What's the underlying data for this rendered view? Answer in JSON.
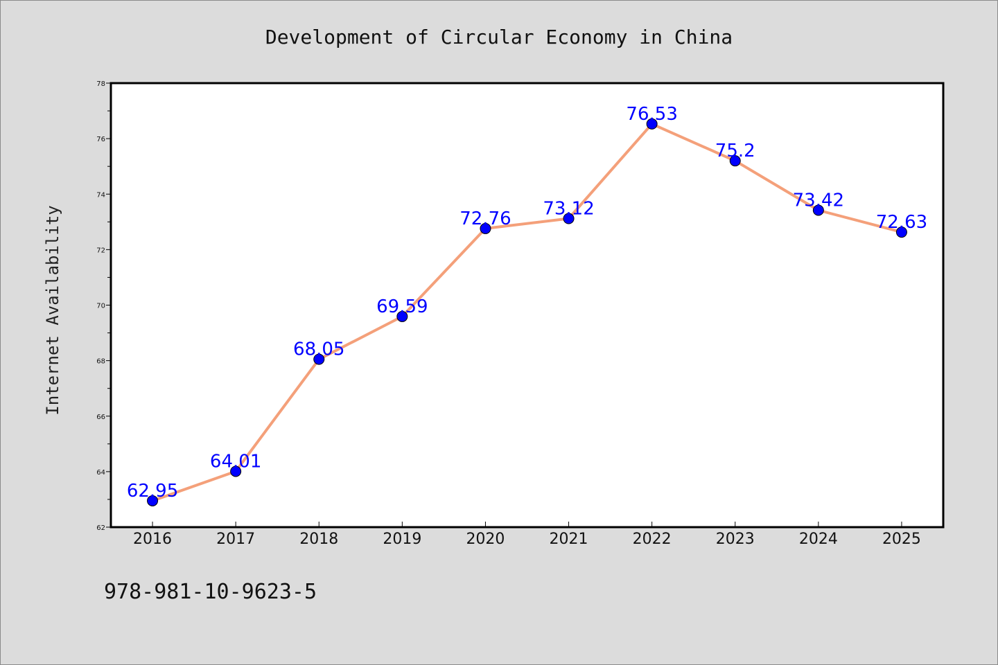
{
  "chart_data": {
    "type": "line",
    "title": "Development of Circular Economy in China",
    "xlabel": "",
    "ylabel": "Internet Availability",
    "categories": [
      "2016",
      "2017",
      "2018",
      "2019",
      "2020",
      "2021",
      "2022",
      "2023",
      "2024",
      "2025"
    ],
    "series": [
      {
        "values": [
          62.95,
          64.01,
          68.05,
          69.59,
          72.76,
          73.12,
          76.53,
          75.2,
          73.42,
          72.63
        ],
        "line_color": "#f4a07a",
        "marker_color": "#0000ff"
      }
    ],
    "data_labels": [
      "62.95",
      "64.01",
      "68.05",
      "69.59",
      "72.76",
      "73.12",
      "76.53",
      "75.2",
      "73.42",
      "72.63"
    ],
    "ylim": [
      62,
      78
    ],
    "yticks": [
      "62",
      "64",
      "66",
      "68",
      "70",
      "72",
      "74",
      "76",
      "78"
    ],
    "grid": false,
    "legend": "none"
  },
  "footer": {
    "isbn": "978-981-10-9623-5"
  },
  "colors": {
    "background": "#dcdcdc",
    "plot_area": "#ffffff",
    "line": "#f4a07a",
    "marker": "#0000ff",
    "data_label": "#0000ff"
  }
}
